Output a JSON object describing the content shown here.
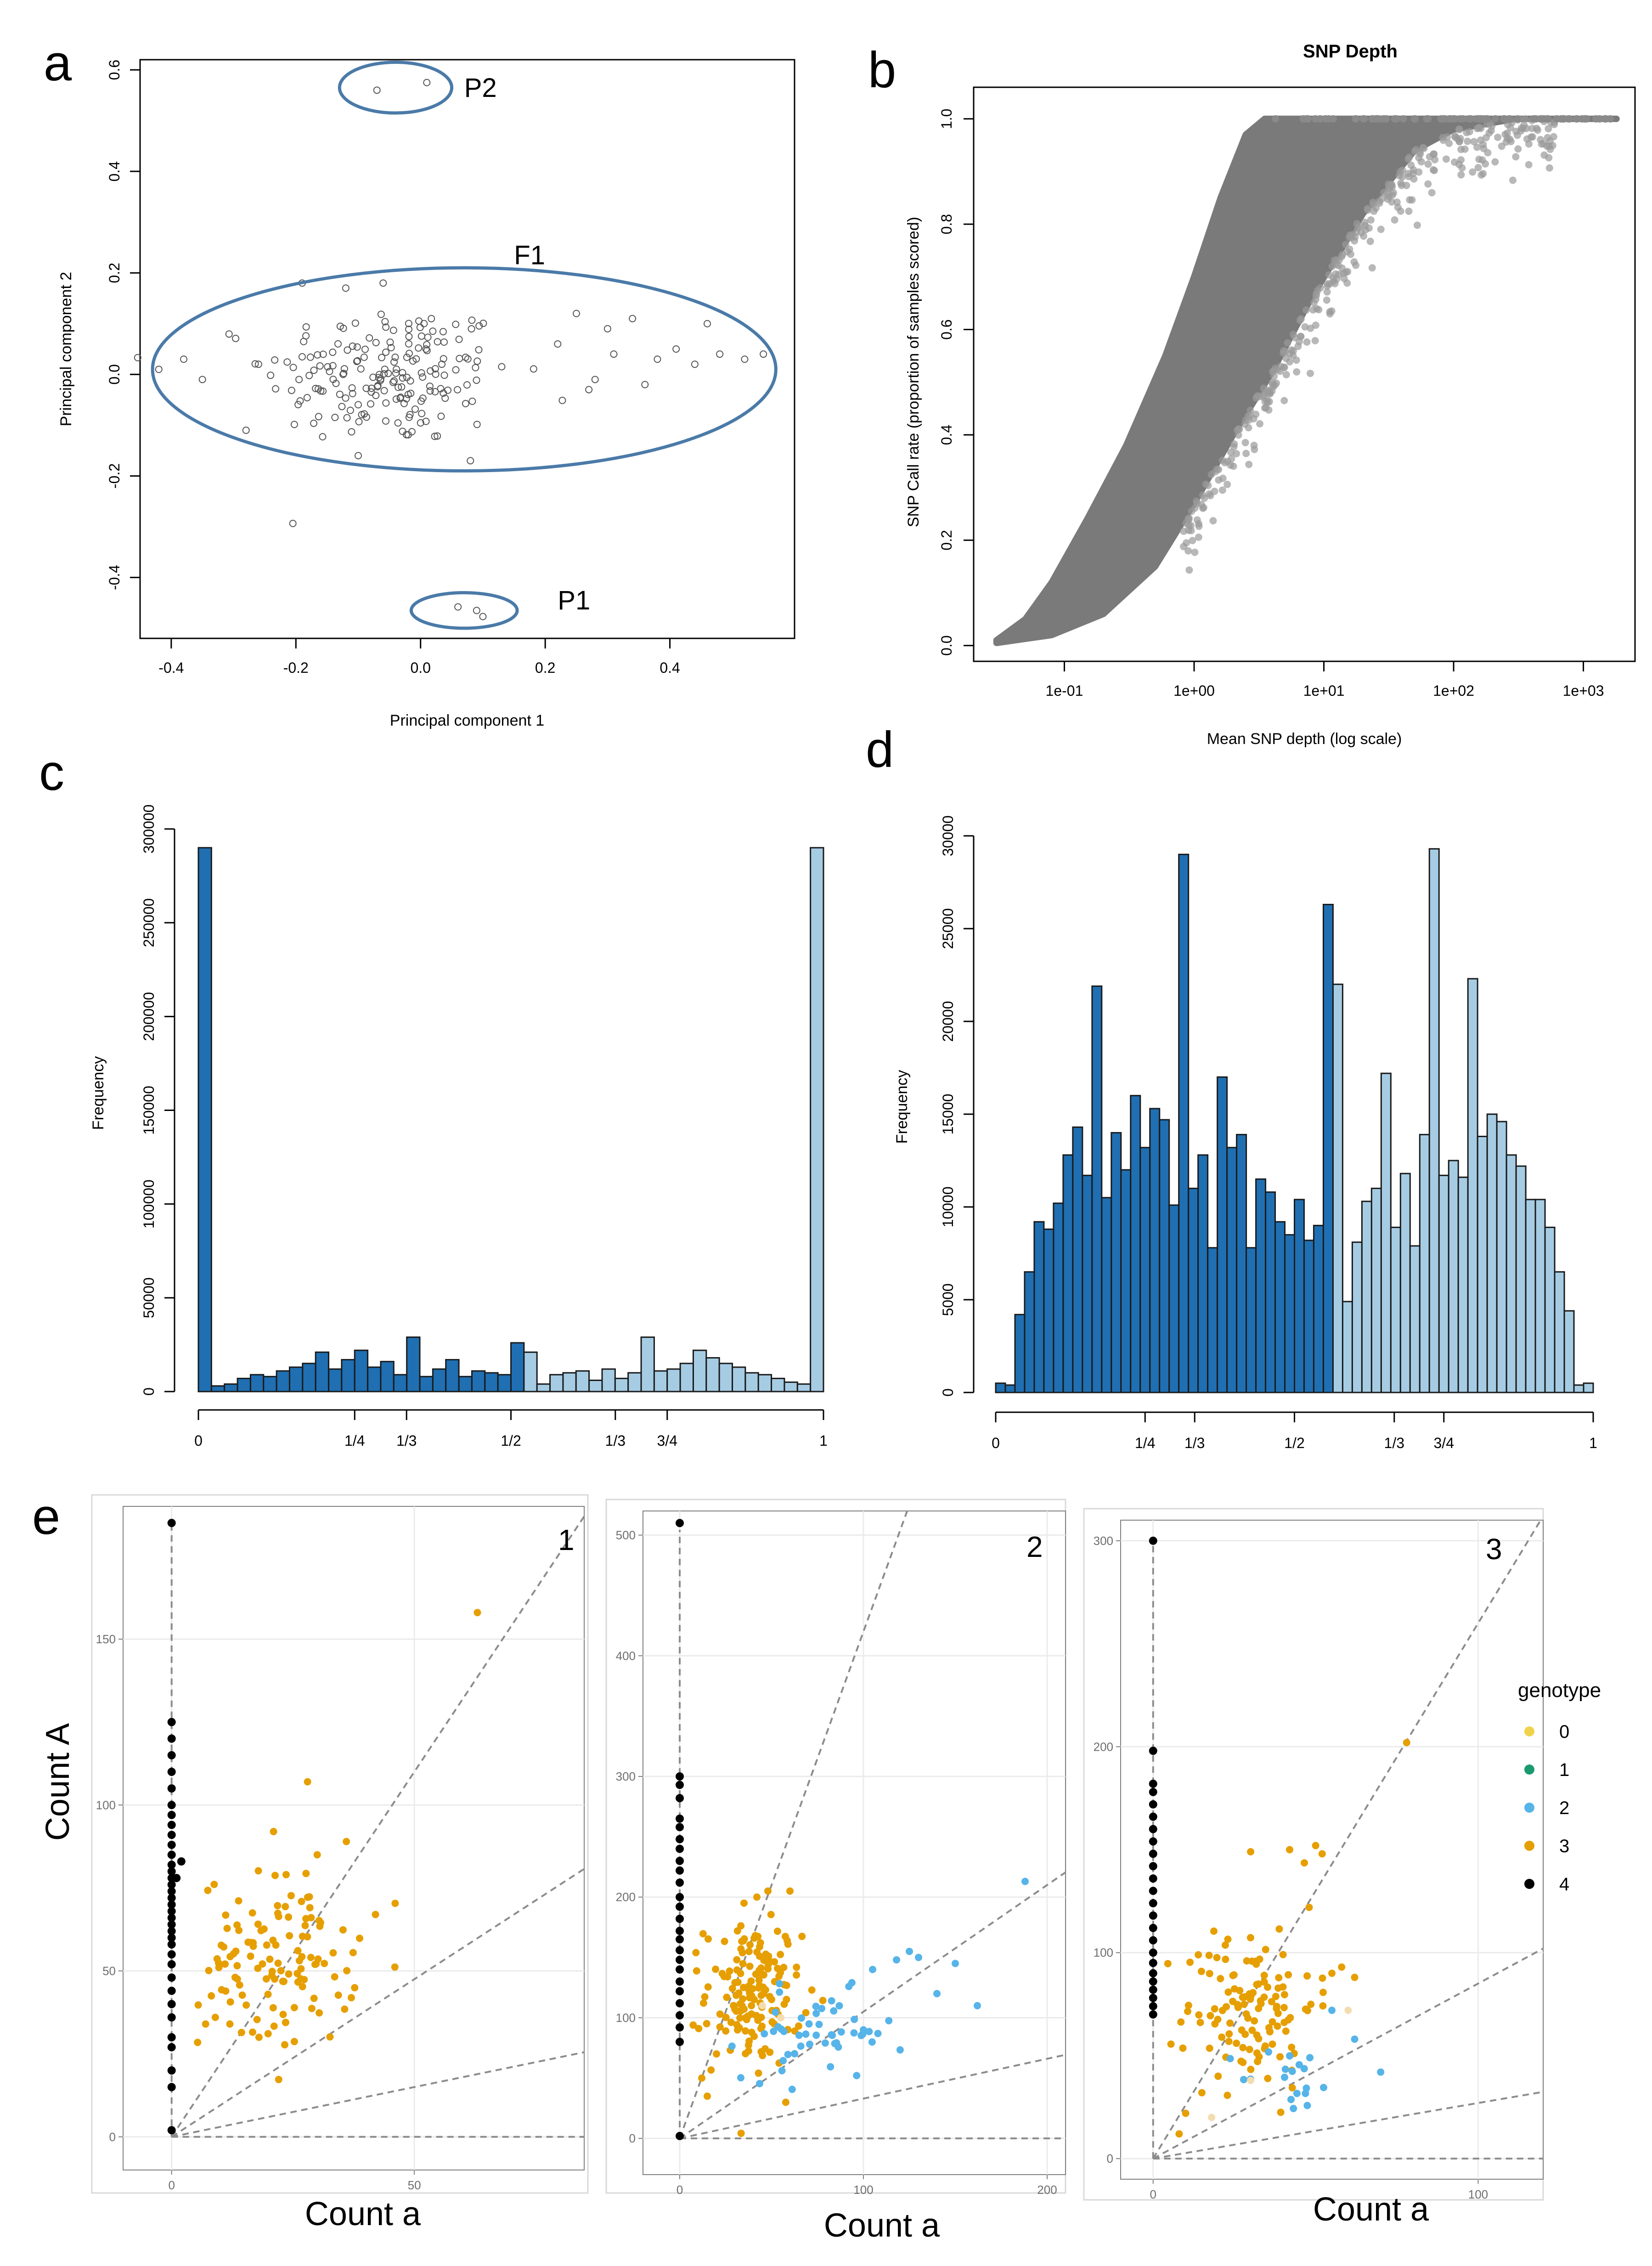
{
  "chart_data": [
    {
      "panel": "a",
      "type": "scatter",
      "title": "",
      "xlabel": "Principal component 1",
      "ylabel": "Principal component 2",
      "xlim": [
        -0.45,
        0.6
      ],
      "ylim": [
        -0.52,
        0.62
      ],
      "xticks": [
        "-0.4",
        "-0.2",
        "0.0",
        "0.2",
        "0.4"
      ],
      "xtick_values": [
        -0.4,
        -0.2,
        0.0,
        0.2,
        0.4
      ],
      "yticks": [
        "-0.4",
        "-0.2",
        "0.0",
        "0.2",
        "0.4",
        "0.6"
      ],
      "ytick_values": [
        -0.4,
        -0.2,
        0.0,
        0.2,
        0.4,
        0.6
      ],
      "annotations": [
        {
          "label": "P2",
          "cx": -0.04,
          "cy": 0.565,
          "rx": 0.09,
          "ry": 0.05,
          "label_x": 0.07,
          "label_y": 0.565
        },
        {
          "label": "F1",
          "cx": 0.07,
          "cy": 0.01,
          "rx": 0.5,
          "ry": 0.2,
          "label_x": 0.15,
          "label_y": 0.235
        },
        {
          "label": "P1",
          "cx": 0.07,
          "cy": -0.465,
          "rx": 0.085,
          "ry": 0.035,
          "label_x": 0.22,
          "label_y": -0.445
        }
      ],
      "points_P2": [
        [
          -0.07,
          0.56
        ],
        [
          0.01,
          0.575
        ]
      ],
      "points_P1": [
        [
          0.06,
          -0.458
        ],
        [
          0.09,
          -0.465
        ],
        [
          0.1,
          -0.477
        ]
      ],
      "points_F1_center": [
        -0.05,
        0.0
      ],
      "points_F1_spread": [
        0.1,
        0.07
      ],
      "points_F1_count": 190,
      "points_F1_tail": [
        [
          0.25,
          0.12
        ],
        [
          0.3,
          0.09
        ],
        [
          0.31,
          0.04
        ],
        [
          0.28,
          -0.01
        ],
        [
          0.34,
          0.11
        ],
        [
          0.38,
          0.03
        ],
        [
          0.41,
          0.05
        ],
        [
          0.44,
          0.02
        ],
        [
          0.46,
          0.1
        ],
        [
          0.48,
          0.04
        ],
        [
          0.52,
          0.03
        ],
        [
          0.55,
          0.04
        ],
        [
          0.36,
          -0.02
        ],
        [
          0.27,
          -0.03
        ],
        [
          0.22,
          0.06
        ],
        [
          -0.42,
          0.01
        ],
        [
          -0.38,
          0.03
        ],
        [
          -0.35,
          -0.01
        ],
        [
          -0.28,
          -0.11
        ],
        [
          -0.26,
          0.02
        ],
        [
          -0.19,
          0.18
        ],
        [
          -0.12,
          0.17
        ],
        [
          -0.06,
          0.18
        ],
        [
          0.08,
          -0.17
        ],
        [
          -0.1,
          -0.16
        ]
      ]
    },
    {
      "panel": "b",
      "type": "scatter",
      "title": "SNP Depth",
      "xlabel": "Mean SNP depth (log scale)",
      "ylabel": "SNP Call rate (proportion of samples scored)",
      "xscale": "log",
      "xlim": [
        0.02,
        2500
      ],
      "ylim": [
        -0.03,
        1.06
      ],
      "xticks": [
        "1e-01",
        "1e+00",
        "1e+01",
        "1e+02",
        "1e+03"
      ],
      "xtick_values": [
        0.1,
        1,
        10,
        100,
        1000
      ],
      "yticks": [
        "0.0",
        "0.2",
        "0.4",
        "0.6",
        "0.8",
        "1.0"
      ],
      "ytick_values": [
        0.0,
        0.2,
        0.4,
        0.6,
        0.8,
        1.0
      ],
      "upper_edge": [
        [
          0.03,
          0.01
        ],
        [
          0.05,
          0.05
        ],
        [
          0.08,
          0.12
        ],
        [
          0.15,
          0.24
        ],
        [
          0.3,
          0.38
        ],
        [
          0.6,
          0.55
        ],
        [
          1,
          0.7
        ],
        [
          1.6,
          0.85
        ],
        [
          2.5,
          0.97
        ],
        [
          3.5,
          1.0
        ],
        [
          1800,
          1.0
        ]
      ],
      "lower_edge": [
        [
          0.03,
          0.005
        ],
        [
          0.08,
          0.02
        ],
        [
          0.2,
          0.06
        ],
        [
          0.5,
          0.15
        ],
        [
          1,
          0.27
        ],
        [
          2,
          0.4
        ],
        [
          4,
          0.52
        ],
        [
          8,
          0.66
        ],
        [
          20,
          0.82
        ],
        [
          50,
          0.94
        ],
        [
          100,
          0.98
        ],
        [
          300,
          1.0
        ],
        [
          1800,
          1.0
        ]
      ],
      "color": "#7a7a7a"
    },
    {
      "panel": "c",
      "type": "bar",
      "title": "",
      "xlabel": "",
      "ylabel": "Frequency",
      "ylim": [
        0,
        300000
      ],
      "yticks": [
        "0",
        "50000",
        "100000",
        "150000",
        "200000",
        "250000",
        "300000"
      ],
      "ytick_values": [
        0,
        50000,
        100000,
        150000,
        200000,
        250000,
        300000
      ],
      "xticks": [
        "0",
        "1/4",
        "1/3",
        "1/2",
        "1/3",
        "3/4",
        "1"
      ],
      "xtick_values": [
        0,
        0.25,
        0.333,
        0.5,
        0.667,
        0.75,
        1
      ],
      "bins": 50,
      "dark_values": [
        290000,
        3000,
        4000,
        7000,
        9000,
        8000,
        11000,
        13000,
        15000,
        21000,
        12000,
        17000,
        22000,
        13000,
        16000,
        9000,
        29000,
        8000,
        12000,
        17000,
        8000,
        11000,
        10000,
        9000,
        26000
      ],
      "light_values": [
        21000,
        4000,
        9000,
        10000,
        11000,
        6000,
        12000,
        7000,
        10000,
        29000,
        11000,
        12000,
        15000,
        22000,
        18000,
        15000,
        13000,
        10000,
        9000,
        7000,
        5000,
        4000,
        290000
      ],
      "dark_color": "#1f6fb2",
      "light_color": "#a6cce4"
    },
    {
      "panel": "d",
      "type": "bar",
      "title": "",
      "xlabel": "",
      "ylabel": "Frequency",
      "ylim": [
        0,
        30000
      ],
      "yticks": [
        "0",
        "5000",
        "10000",
        "15000",
        "20000",
        "25000",
        "30000"
      ],
      "ytick_values": [
        0,
        5000,
        10000,
        15000,
        20000,
        25000,
        30000
      ],
      "xticks": [
        "0",
        "1/4",
        "1/3",
        "1/2",
        "1/3",
        "3/4",
        "1"
      ],
      "xtick_values": [
        0,
        0.25,
        0.333,
        0.5,
        0.667,
        0.75,
        1
      ],
      "bins": 50,
      "dark_values": [
        500,
        400,
        4200,
        6500,
        9200,
        8800,
        10200,
        12800,
        14300,
        11700,
        21900,
        10500,
        14000,
        12000,
        16000,
        13200,
        15300,
        14700,
        10100,
        29000,
        11000,
        12800,
        7800,
        17000,
        13200,
        13900,
        7800,
        11500,
        10800,
        9200,
        8500,
        10400,
        8200,
        9000,
        26300
      ],
      "light_values": [
        22000,
        4900,
        8100,
        10300,
        11000,
        17200,
        8900,
        11800,
        7900,
        13900,
        29300,
        11700,
        12500,
        11600,
        22300,
        13800,
        15000,
        14600,
        12800,
        12200,
        10400,
        10400,
        8900,
        6500,
        4400,
        400,
        500
      ],
      "dark_color": "#1f6fb2",
      "light_color": "#a6cce4"
    },
    {
      "panel": "e1",
      "type": "scatter",
      "number": "1",
      "xlabel": "Count a",
      "ylabel": "Count A",
      "xlim": [
        -10,
        85
      ],
      "ylim": [
        -10,
        190
      ],
      "xticks": [
        "0",
        "50"
      ],
      "xtick_values": [
        0,
        50
      ],
      "yticks": [
        "0",
        "50",
        "100",
        "150"
      ],
      "ytick_values": [
        0,
        50,
        100,
        150
      ],
      "dashed_slopes": [
        2.2,
        0.95,
        0.3,
        0
      ],
      "black_points": [
        [
          0,
          185
        ],
        [
          0,
          125
        ],
        [
          0,
          120
        ],
        [
          0,
          115
        ],
        [
          0,
          110
        ],
        [
          0,
          105
        ],
        [
          0,
          100
        ],
        [
          0,
          97
        ],
        [
          0,
          94
        ],
        [
          0,
          91
        ],
        [
          0,
          88
        ],
        [
          0,
          85
        ],
        [
          0,
          82
        ],
        [
          0,
          80
        ],
        [
          0,
          78
        ],
        [
          0,
          76
        ],
        [
          0,
          74
        ],
        [
          0,
          72
        ],
        [
          0,
          70
        ],
        [
          0,
          68
        ],
        [
          0,
          66
        ],
        [
          0,
          64
        ],
        [
          0,
          62
        ],
        [
          0,
          60
        ],
        [
          0,
          58
        ],
        [
          0,
          55
        ],
        [
          0,
          52
        ],
        [
          0,
          48
        ],
        [
          0,
          44
        ],
        [
          0,
          40
        ],
        [
          0,
          36
        ],
        [
          0,
          30
        ],
        [
          0,
          27
        ],
        [
          0,
          20
        ],
        [
          0,
          15
        ],
        [
          0,
          2
        ],
        [
          2,
          83
        ],
        [
          1,
          78
        ]
      ],
      "orange_center": [
        22,
        53
      ],
      "orange_spread": [
        8,
        13
      ],
      "orange_count": 120,
      "orange_extra": [
        [
          63,
          158
        ],
        [
          28,
          107
        ],
        [
          21,
          92
        ],
        [
          30,
          85
        ],
        [
          36,
          89
        ],
        [
          42,
          67
        ],
        [
          9,
          36
        ],
        [
          7,
          34
        ],
        [
          12,
          34
        ],
        [
          18,
          30
        ]
      ]
    },
    {
      "panel": "e2",
      "type": "scatter",
      "number": "2",
      "xlabel": "Count a",
      "ylabel": "",
      "xlim": [
        -20,
        210
      ],
      "ylim": [
        -30,
        520
      ],
      "xticks": [
        "0",
        "100",
        "200"
      ],
      "xtick_values": [
        0,
        100,
        200
      ],
      "yticks": [
        "0",
        "100",
        "200",
        "300",
        "400",
        "500"
      ],
      "ytick_values": [
        0,
        100,
        200,
        300,
        400,
        500
      ],
      "dashed_slopes": [
        4.2,
        1.05,
        0.33,
        0
      ],
      "black_points": [
        [
          0,
          510
        ],
        [
          0,
          300
        ],
        [
          0,
          293
        ],
        [
          0,
          282
        ],
        [
          0,
          265
        ],
        [
          0,
          258
        ],
        [
          0,
          248
        ],
        [
          0,
          240
        ],
        [
          0,
          230
        ],
        [
          0,
          222
        ],
        [
          0,
          212
        ],
        [
          0,
          200
        ],
        [
          0,
          192
        ],
        [
          0,
          182
        ],
        [
          0,
          172
        ],
        [
          0,
          165
        ],
        [
          0,
          156
        ],
        [
          0,
          148
        ],
        [
          0,
          140
        ],
        [
          0,
          130
        ],
        [
          0,
          122
        ],
        [
          0,
          112
        ],
        [
          0,
          102
        ],
        [
          0,
          92
        ],
        [
          0,
          80
        ],
        [
          0,
          2
        ]
      ],
      "orange_center": [
        40,
        120
      ],
      "orange_spread": [
        13,
        30
      ],
      "orange_count": 150,
      "orange_extra": [
        [
          15,
          35
        ],
        [
          12,
          50
        ],
        [
          60,
          205
        ],
        [
          48,
          205
        ],
        [
          42,
          200
        ],
        [
          35,
          195
        ],
        [
          20,
          70
        ]
      ],
      "blue_center": [
        75,
        85
      ],
      "blue_spread": [
        20,
        18
      ],
      "blue_count": 50,
      "blue_extra": [
        [
          188,
          213
        ],
        [
          125,
          155
        ],
        [
          130,
          150
        ],
        [
          150,
          145
        ],
        [
          162,
          110
        ],
        [
          118,
          148
        ],
        [
          105,
          140
        ],
        [
          140,
          120
        ],
        [
          100,
          90
        ]
      ],
      "light_points": [
        [
          55,
          100
        ],
        [
          45,
          110
        ]
      ]
    },
    {
      "panel": "e3",
      "type": "scatter",
      "number": "3",
      "xlabel": "Count a",
      "ylabel": "",
      "xlim": [
        -10,
        120
      ],
      "ylim": [
        -10,
        310
      ],
      "xticks": [
        "0",
        "100"
      ],
      "xtick_values": [
        0,
        100
      ],
      "yticks": [
        "0",
        "100",
        "200",
        "300"
      ],
      "ytick_values": [
        0,
        100,
        200,
        300
      ],
      "dashed_slopes": [
        2.6,
        0.85,
        0.27,
        0
      ],
      "black_points": [
        [
          0,
          300
        ],
        [
          0,
          198
        ],
        [
          0,
          182
        ],
        [
          0,
          178
        ],
        [
          0,
          172
        ],
        [
          0,
          166
        ],
        [
          0,
          160
        ],
        [
          0,
          154
        ],
        [
          0,
          148
        ],
        [
          0,
          142
        ],
        [
          0,
          136
        ],
        [
          0,
          130
        ],
        [
          0,
          124
        ],
        [
          0,
          118
        ],
        [
          0,
          112
        ],
        [
          0,
          106
        ],
        [
          0,
          100
        ],
        [
          0,
          95
        ],
        [
          0,
          90
        ],
        [
          0,
          86
        ],
        [
          0,
          82
        ],
        [
          0,
          78
        ],
        [
          0,
          74
        ],
        [
          0,
          70
        ]
      ],
      "orange_center": [
        30,
        75
      ],
      "orange_spread": [
        10,
        20
      ],
      "orange_count": 120,
      "orange_extra": [
        [
          78,
          202
        ],
        [
          50,
          152
        ],
        [
          52,
          148
        ],
        [
          42,
          150
        ],
        [
          30,
          149
        ],
        [
          48,
          122
        ],
        [
          58,
          93
        ],
        [
          55,
          90
        ],
        [
          62,
          88
        ],
        [
          8,
          12
        ],
        [
          10,
          22
        ],
        [
          15,
          32
        ],
        [
          20,
          40
        ]
      ],
      "blue_center": [
        42,
        38
      ],
      "blue_spread": [
        8,
        8
      ],
      "blue_count": 18,
      "blue_extra": [
        [
          70,
          42
        ],
        [
          62,
          58
        ],
        [
          55,
          72
        ]
      ],
      "light_points": [
        [
          60,
          72
        ],
        [
          30,
          38
        ],
        [
          18,
          20
        ]
      ]
    }
  ],
  "labels": {
    "panel_a": "a",
    "panel_b": "b",
    "panel_c": "c",
    "panel_d": "d",
    "panel_e": "e"
  },
  "legend": {
    "title": "genotype",
    "entries": [
      {
        "label": "0",
        "color": "#f0d34a"
      },
      {
        "label": "1",
        "color": "#1a9a6e"
      },
      {
        "label": "2",
        "color": "#56b4e9"
      },
      {
        "label": "3",
        "color": "#e69f00"
      },
      {
        "label": "4",
        "color": "#000000"
      }
    ]
  }
}
